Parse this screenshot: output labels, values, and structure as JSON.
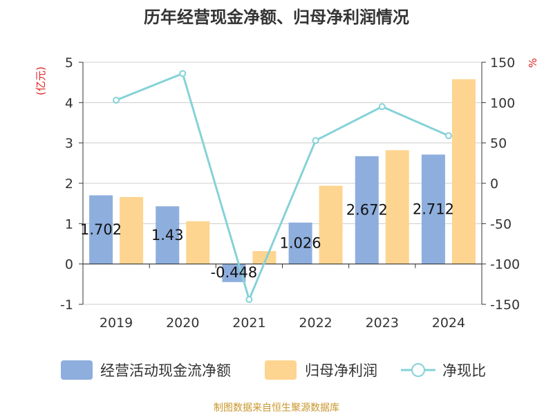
{
  "chart_data": {
    "type": "bar+line",
    "title": "历年经营现金净额、归母净利润情况",
    "categories": [
      "2019",
      "2020",
      "2021",
      "2022",
      "2023",
      "2024"
    ],
    "series": [
      {
        "name": "经营活动现金流净额",
        "type": "bar",
        "axis": "left",
        "color": "#8eaedd",
        "values": [
          1.702,
          1.43,
          -0.448,
          1.026,
          2.672,
          2.712
        ],
        "labels": [
          "1.702",
          "1.43",
          "-0.448",
          "1.026",
          "2.672",
          "2.712"
        ]
      },
      {
        "name": "归母净利润",
        "type": "bar",
        "axis": "left",
        "color": "#fdd590",
        "values": [
          1.66,
          1.06,
          0.32,
          1.94,
          2.82,
          4.58
        ]
      },
      {
        "name": "净现比",
        "type": "line",
        "axis": "right",
        "color": "#85d2d7",
        "values": [
          103,
          136,
          -144,
          53,
          95,
          59
        ]
      }
    ],
    "yLeft": {
      "label": "(亿元)",
      "min": -1,
      "max": 5,
      "ticks": [
        "-1",
        "0",
        "1",
        "2",
        "3",
        "4",
        "5"
      ]
    },
    "yRight": {
      "label": "%",
      "min": -150,
      "max": 150,
      "ticks": [
        "-150",
        "-100",
        "-50",
        "0",
        "50",
        "100",
        "150"
      ]
    },
    "grid": true,
    "legend_position": "bottom",
    "source": "制图数据来自恒生聚源数据库"
  }
}
